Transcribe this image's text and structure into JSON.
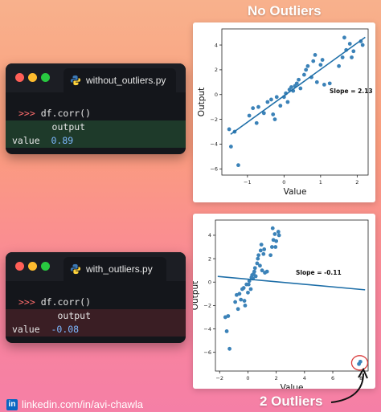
{
  "headings": {
    "top": "No Outliers",
    "bottom": "2 Outliers"
  },
  "editors": [
    {
      "filename": "without_outliers.py",
      "command": "df.corr()",
      "prompt": ">>>",
      "column_header": "output",
      "row_label": "value",
      "value": "0.89",
      "highlight": "#1e3a2a"
    },
    {
      "filename": "with_outliers.py",
      "command": "df.corr()",
      "prompt": ">>>",
      "column_header": "output",
      "row_label": "value",
      "value": "-0.08",
      "highlight": "#3a1e24"
    }
  ],
  "footer": {
    "icon": "linkedin-icon",
    "text": "linkedin.com/in/avi-chawla"
  },
  "colors": {
    "point": "#3b82b8",
    "line": "#1f6fa8",
    "outlier_circle": "#d93a3a"
  },
  "chart_data": [
    {
      "type": "scatter",
      "title": "",
      "xlabel": "Value",
      "ylabel": "Output",
      "xlim": [
        -1.7,
        2.3
      ],
      "ylim": [
        -6.5,
        5.3
      ],
      "xticks": [
        -1,
        0,
        1,
        2
      ],
      "yticks": [
        -6,
        -4,
        -2,
        0,
        2,
        4
      ],
      "annotation": "Slope = 2.13",
      "fit_line": {
        "slope": 2.13,
        "intercept": -0.1
      },
      "points": [
        [
          -1.5,
          -2.8
        ],
        [
          -1.45,
          -4.2
        ],
        [
          -1.35,
          -3.0
        ],
        [
          -1.25,
          -5.7
        ],
        [
          -0.95,
          -1.7
        ],
        [
          -0.85,
          -1.1
        ],
        [
          -0.75,
          -2.3
        ],
        [
          -0.7,
          -1.0
        ],
        [
          -0.55,
          -1.5
        ],
        [
          -0.45,
          -0.6
        ],
        [
          -0.35,
          -0.4
        ],
        [
          -0.3,
          -1.6
        ],
        [
          -0.25,
          -2.0
        ],
        [
          -0.2,
          -0.2
        ],
        [
          -0.1,
          -0.9
        ],
        [
          0.0,
          -0.2
        ],
        [
          0.05,
          0.1
        ],
        [
          0.1,
          -0.6
        ],
        [
          0.15,
          0.4
        ],
        [
          0.2,
          0.6
        ],
        [
          0.25,
          0.3
        ],
        [
          0.3,
          0.7
        ],
        [
          0.35,
          0.9
        ],
        [
          0.4,
          1.2
        ],
        [
          0.45,
          0.5
        ],
        [
          0.55,
          1.6
        ],
        [
          0.6,
          2.0
        ],
        [
          0.65,
          2.3
        ],
        [
          0.75,
          1.4
        ],
        [
          0.8,
          2.7
        ],
        [
          0.85,
          3.2
        ],
        [
          0.9,
          1.0
        ],
        [
          1.0,
          2.4
        ],
        [
          1.05,
          2.8
        ],
        [
          1.1,
          0.8
        ],
        [
          1.25,
          0.9
        ],
        [
          1.5,
          2.3
        ],
        [
          1.6,
          3.0
        ],
        [
          1.65,
          4.6
        ],
        [
          1.7,
          3.6
        ],
        [
          1.8,
          4.1
        ],
        [
          1.85,
          3.0
        ],
        [
          1.9,
          3.5
        ],
        [
          2.1,
          4.3
        ],
        [
          2.15,
          4.0
        ]
      ]
    },
    {
      "type": "scatter",
      "title": "",
      "xlabel": "Value",
      "ylabel": "Output",
      "xlim": [
        -2.3,
        8.5
      ],
      "ylim": [
        -7.6,
        5.3
      ],
      "xticks": [
        -2,
        0,
        2,
        4,
        6,
        8
      ],
      "yticks": [
        -6,
        -4,
        -2,
        0,
        2,
        4
      ],
      "annotation": "Slope = -0.11",
      "fit_line": {
        "slope": -0.11,
        "intercept": 0.25
      },
      "outliers": [
        [
          7.85,
          -7.0
        ],
        [
          7.95,
          -6.8
        ]
      ],
      "points": [
        [
          -1.6,
          -3.0
        ],
        [
          -1.5,
          -4.2
        ],
        [
          -1.4,
          -2.9
        ],
        [
          -1.3,
          -5.7
        ],
        [
          -0.9,
          -1.7
        ],
        [
          -0.8,
          -1.1
        ],
        [
          -0.7,
          -2.3
        ],
        [
          -0.6,
          -1.0
        ],
        [
          -0.5,
          -1.5
        ],
        [
          -0.4,
          -0.6
        ],
        [
          -0.3,
          -0.5
        ],
        [
          -0.25,
          -1.6
        ],
        [
          -0.2,
          -2.0
        ],
        [
          -0.1,
          -0.2
        ],
        [
          0.0,
          -0.9
        ],
        [
          0.05,
          -0.2
        ],
        [
          0.1,
          0.1
        ],
        [
          0.2,
          -0.6
        ],
        [
          0.25,
          0.4
        ],
        [
          0.3,
          0.6
        ],
        [
          0.35,
          0.3
        ],
        [
          0.4,
          0.7
        ],
        [
          0.45,
          0.9
        ],
        [
          0.5,
          1.2
        ],
        [
          0.55,
          0.5
        ],
        [
          0.65,
          1.6
        ],
        [
          0.7,
          2.0
        ],
        [
          0.75,
          2.3
        ],
        [
          0.85,
          1.4
        ],
        [
          0.9,
          2.7
        ],
        [
          0.95,
          3.2
        ],
        [
          1.0,
          1.0
        ],
        [
          1.1,
          2.4
        ],
        [
          1.15,
          2.8
        ],
        [
          1.2,
          0.8
        ],
        [
          1.35,
          0.9
        ],
        [
          1.6,
          2.3
        ],
        [
          1.7,
          3.0
        ],
        [
          1.75,
          4.6
        ],
        [
          1.8,
          3.6
        ],
        [
          1.9,
          4.1
        ],
        [
          1.95,
          3.0
        ],
        [
          2.0,
          3.5
        ],
        [
          2.15,
          4.3
        ],
        [
          2.2,
          4.0
        ]
      ]
    }
  ]
}
